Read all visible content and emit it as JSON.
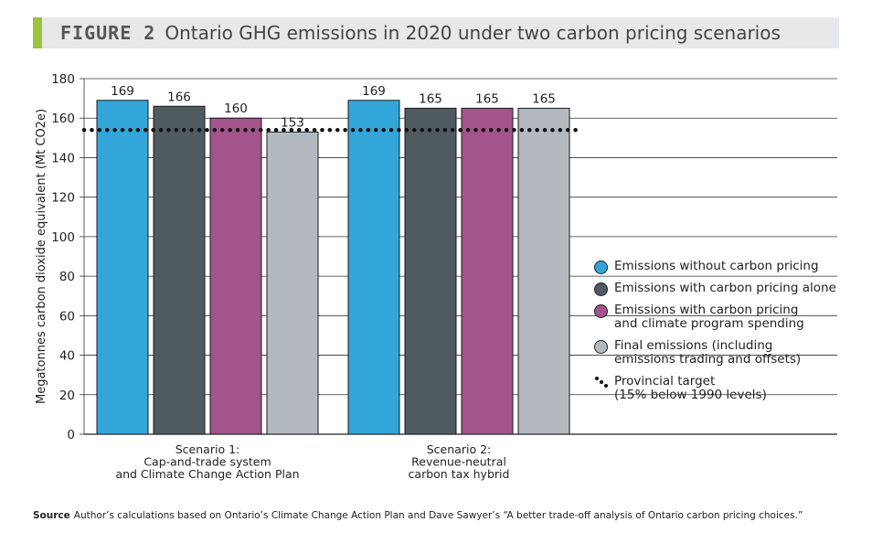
{
  "title": {
    "figure_label": "FIGURE 2",
    "text": "Ontario GHG emissions in 2020 under two carbon pricing scenarios"
  },
  "colors": {
    "accent": "#9ac43c",
    "series": [
      "#33a6d9",
      "#4f5a61",
      "#a3548a",
      "#b3b9bf"
    ]
  },
  "legend": {
    "items": [
      {
        "lines": [
          "Emissions without carbon pricing"
        ],
        "icon": "circle",
        "color": "#33a6d9"
      },
      {
        "lines": [
          "Emissions with carbon pricing alone"
        ],
        "icon": "circle",
        "color": "#4f5a61"
      },
      {
        "lines": [
          "Emissions with carbon pricing",
          "and climate program spending"
        ],
        "icon": "circle",
        "color": "#a3548a"
      },
      {
        "lines": [
          "Final emissions (including",
          "emissions trading and offsets)"
        ],
        "icon": "circle",
        "color": "#b3b9bf"
      },
      {
        "lines": [
          "Provincial target",
          "(15% below 1990 levels)"
        ],
        "icon": "dotted-line",
        "color": "#111111"
      }
    ]
  },
  "chart_data": {
    "type": "bar",
    "categories": [
      [
        "Scenario 1:",
        "Cap-and-trade system",
        "and Climate Change Action Plan"
      ],
      [
        "Scenario 2:",
        "Revenue-neutral",
        "carbon tax hybrid"
      ]
    ],
    "series": [
      {
        "name": "Emissions without carbon pricing",
        "values": [
          169,
          169
        ]
      },
      {
        "name": "Emissions with carbon pricing alone",
        "values": [
          166,
          165
        ]
      },
      {
        "name": "Emissions with carbon pricing and climate program spending",
        "values": [
          160,
          165
        ]
      },
      {
        "name": "Final emissions (including emissions trading and offsets)",
        "values": [
          153,
          165
        ]
      }
    ],
    "data_labels": [
      [
        "169",
        "166",
        "160",
        "153"
      ],
      [
        "169",
        "165",
        "165",
        "165"
      ]
    ],
    "target_line": {
      "name": "Provincial target (15% below 1990 levels)",
      "value": 154
    },
    "ylabel": "Megatonnes carbon dioxide equivalent (Mt CO2e)",
    "ylim": [
      0,
      180
    ],
    "yticks": [
      0,
      20,
      40,
      60,
      80,
      100,
      120,
      140,
      160,
      180
    ],
    "grid": true,
    "legend_position": "right"
  },
  "source": {
    "label": "Source",
    "text": "Author’s calculations based on Ontario’s Climate Change Action Plan and Dave Sawyer’s “A better trade-off analysis of Ontario carbon pricing choices.”"
  }
}
